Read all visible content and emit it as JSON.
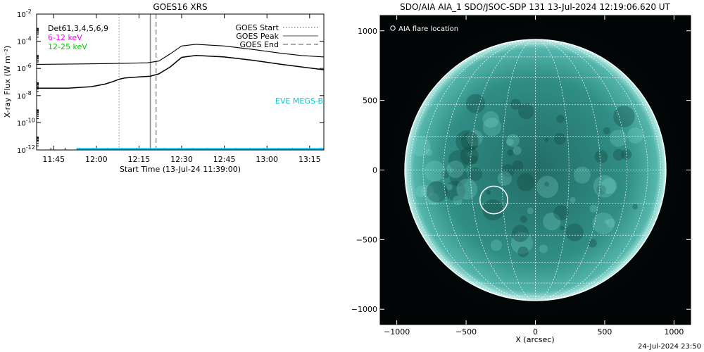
{
  "chart_data": [
    {
      "type": "line",
      "title": "GOES16 XRS",
      "xlabel": "Start Time (13-Jul-24 11:39:00)",
      "ylabel": "X-ray Flux (W m⁻²)",
      "yscale": "log",
      "ylim": [
        1e-12,
        0.01
      ],
      "xlim": [
        "11:39",
        "13:20"
      ],
      "y_ticks": [
        {
          "exp": "-12"
        },
        {
          "exp": "-10"
        },
        {
          "exp": "-8"
        },
        {
          "exp": "-6"
        },
        {
          "exp": "-4"
        },
        {
          "exp": "-2"
        }
      ],
      "x_ticks": [
        "11:45",
        "12:00",
        "12:15",
        "12:30",
        "12:45",
        "13:00",
        "13:15"
      ],
      "legend_left": [
        {
          "text": "Det61,3,4,5,6,9",
          "color": "#000000"
        },
        {
          "text": "6-12 keV",
          "color": "#ff00ff"
        },
        {
          "text": "12-25 keV",
          "color": "#00cc00"
        }
      ],
      "legend_right": [
        {
          "text": "GOES Start",
          "style": "dotted"
        },
        {
          "text": "GOES Peak",
          "style": "solid"
        },
        {
          "text": "GOES End",
          "style": "dashed"
        }
      ],
      "annotation": {
        "text": "EVE MEGS-B",
        "color": "#00cccc"
      },
      "markers": {
        "start": "12:08",
        "peak": "12:19",
        "end": "12:21"
      },
      "series": [
        {
          "color": "#000000",
          "x": [
            "11:39",
            "12:00",
            "12:10",
            "12:18",
            "12:22",
            "12:26",
            "12:30",
            "12:35",
            "12:45",
            "12:55",
            "13:05",
            "13:12",
            "13:20"
          ],
          "values": [
            2e-06,
            2.2e-06,
            2.4e-06,
            2.6e-06,
            3.5e-06,
            1.2e-05,
            4.5e-05,
            6e-05,
            4.5e-05,
            2.5e-05,
            1.3e-05,
            9e-06,
            7e-06
          ]
        },
        {
          "color": "#000000",
          "x": [
            "11:39",
            "11:50",
            "11:58",
            "12:03",
            "12:06",
            "12:08",
            "12:10",
            "12:15",
            "12:19",
            "12:22",
            "12:26",
            "12:30",
            "12:35",
            "12:45",
            "12:55",
            "13:05",
            "13:12",
            "13:20"
          ],
          "values": [
            3.5e-08,
            3.5e-08,
            4.5e-08,
            7e-08,
            1.1e-07,
            1.6e-07,
            2e-07,
            2.4e-07,
            2.7e-07,
            4e-07,
            1.3e-06,
            6.5e-06,
            9e-06,
            7e-06,
            4e-06,
            2e-06,
            1.3e-06,
            8e-07
          ]
        }
      ],
      "baseline": {
        "color": "#00ccff",
        "x": [
          "11:53",
          "13:20"
        ],
        "value": 1.2e-12
      }
    },
    {
      "type": "image",
      "title": "SDO/AIA AIA_1 SDO/JSOC-SDP 131 13-Jul-2024 12:19:06.620 UT",
      "xlabel": "X (arcsec)",
      "xlim": [
        -1120,
        1120
      ],
      "ylim": [
        -1110,
        1110
      ],
      "x_ticks": [
        "−1000",
        "−500",
        "0",
        "500",
        "1000"
      ],
      "y_ticks": [
        "−1000",
        "−500",
        "0",
        "500",
        "1000"
      ],
      "legend": "AIA flare location",
      "colors": {
        "disk": "#2e8a82",
        "limb": "#bff0ea",
        "grid": "#ffffff"
      },
      "solar_radius_arcsec": 942,
      "flare_location_arcsec": [
        -300,
        -215
      ]
    }
  ],
  "footer": {
    "timestamp": "24-Jul-2024 23:50"
  }
}
